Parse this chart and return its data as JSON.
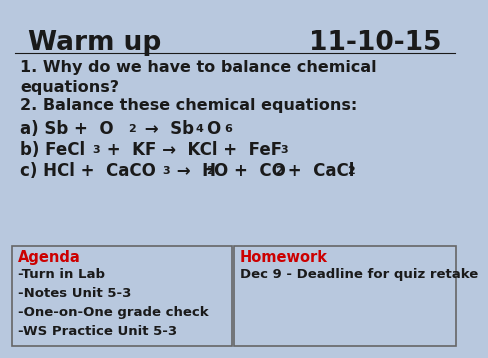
{
  "bg_color": "#b8c8de",
  "title_left": "Warm up",
  "title_right": "11-10-15",
  "title_fontsize": 19,
  "black_color": "#1a1a1a",
  "red_color": "#cc0000",
  "box_border": "#666666",
  "agenda_title": "Agenda",
  "agenda_items": [
    "-Turn in Lab",
    "-Notes Unit 5-3",
    "-One-on-One grade check",
    "-WS Practice Unit 5-3"
  ],
  "homework_title": "Homework",
  "homework_items": [
    "Dec 9 - Deadline for quiz retake"
  ]
}
